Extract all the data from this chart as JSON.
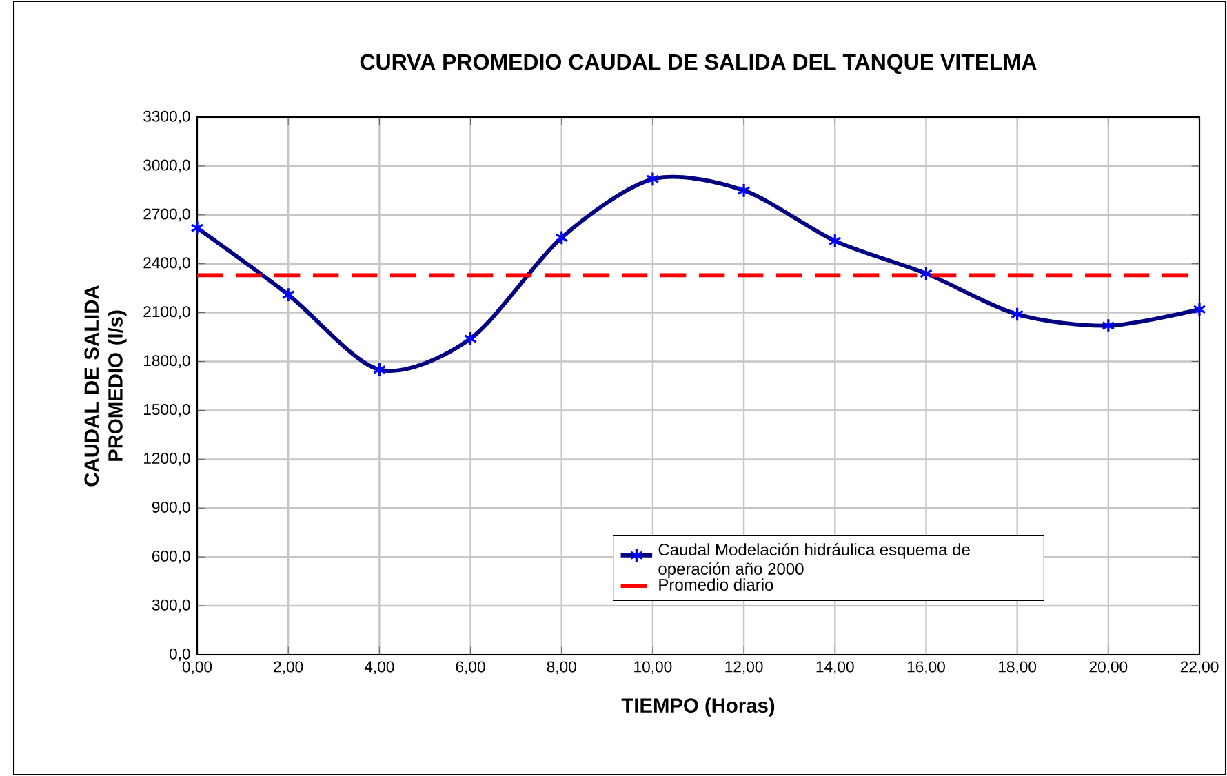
{
  "chart_data": {
    "type": "line",
    "title": "CURVA PROMEDIO  CAUDAL DE SALIDA DEL TANQUE VITELMA",
    "xlabel": "TIEMPO (Horas)",
    "ylabel": "CAUDAL DE SALIDA PROMEDIO (l/s)",
    "x": [
      0,
      2,
      4,
      6,
      8,
      10,
      12,
      14,
      16,
      18,
      20,
      22
    ],
    "series": [
      {
        "name": "Caudal Modelación hidráulica esquema de operación año 2000",
        "color": "#000080",
        "values": [
          2620,
          2210,
          1750,
          1940,
          2560,
          2920,
          2850,
          2540,
          2340,
          2090,
          2020,
          2120
        ]
      }
    ],
    "ref_lines": [
      {
        "axis": "y",
        "value": 2330,
        "label": "Promedio diario",
        "color": "#ff0000",
        "line_style": "dashed"
      }
    ],
    "xlim": [
      0,
      22
    ],
    "ylim": [
      0,
      3300
    ],
    "xticks": [
      {
        "value": 0,
        "label": "0,00"
      },
      {
        "value": 2,
        "label": "2,00"
      },
      {
        "value": 4,
        "label": "4,00"
      },
      {
        "value": 6,
        "label": "6,00"
      },
      {
        "value": 8,
        "label": "8,00"
      },
      {
        "value": 10,
        "label": "10,00"
      },
      {
        "value": 12,
        "label": "12,00"
      },
      {
        "value": 14,
        "label": "14,00"
      },
      {
        "value": 16,
        "label": "16,00"
      },
      {
        "value": 18,
        "label": "18,00"
      },
      {
        "value": 20,
        "label": "20,00"
      },
      {
        "value": 22,
        "label": "22,00"
      }
    ],
    "yticks": [
      {
        "value": 0,
        "label": "0,0"
      },
      {
        "value": 300,
        "label": "300,0"
      },
      {
        "value": 600,
        "label": "600,0"
      },
      {
        "value": 900,
        "label": "900,0"
      },
      {
        "value": 1200,
        "label": "1200,0"
      },
      {
        "value": 1500,
        "label": "1500,0"
      },
      {
        "value": 1800,
        "label": "1800,0"
      },
      {
        "value": 2100,
        "label": "2100,0"
      },
      {
        "value": 2400,
        "label": "2400,0"
      },
      {
        "value": 2700,
        "label": "2700,0"
      },
      {
        "value": 3000,
        "label": "3000,0"
      },
      {
        "value": 3300,
        "label": "3300,0"
      }
    ],
    "grid": true,
    "legend": "bottom",
    "marker": "cross",
    "line_style": "solid"
  }
}
